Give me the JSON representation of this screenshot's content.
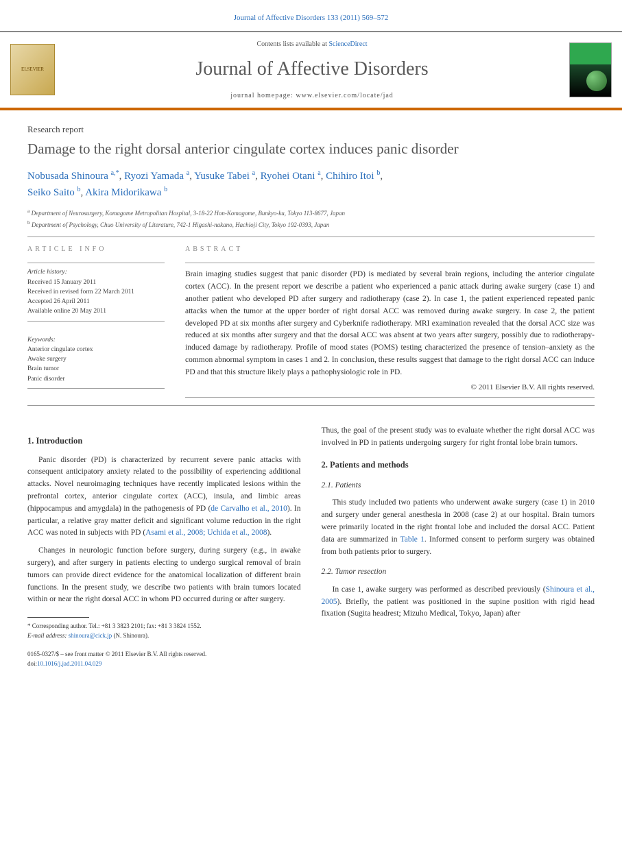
{
  "header": {
    "citation": "Journal of Affective Disorders 133 (2011) 569–572"
  },
  "masthead": {
    "elsevier": "ELSEVIER",
    "contents_prefix": "Contents lists available at ",
    "contents_link": "ScienceDirect",
    "journal": "Journal of Affective Disorders",
    "homepage_label": "journal homepage: ",
    "homepage_url": "www.elsevier.com/locate/jad"
  },
  "article": {
    "type": "Research report",
    "title": "Damage to the right dorsal anterior cingulate cortex induces panic disorder",
    "authors": [
      {
        "name": "Nobusada Shinoura",
        "aff": "a,",
        "corr": "*"
      },
      {
        "name": "Ryozi Yamada",
        "aff": "a"
      },
      {
        "name": "Yusuke Tabei",
        "aff": "a"
      },
      {
        "name": "Ryohei Otani",
        "aff": "a"
      },
      {
        "name": "Chihiro Itoi",
        "aff": "b"
      },
      {
        "name": "Seiko Saito",
        "aff": "b"
      },
      {
        "name": "Akira Midorikawa",
        "aff": "b"
      }
    ],
    "affiliations": {
      "a": "Department of Neurosurgery, Komagome Metropolitan Hospital, 3-18-22 Hon-Komagome, Bunkyo-ku, Tokyo 113-8677, Japan",
      "b": "Department of Psychology, Chuo University of Literature, 742-1 Higashi-nakano, Hachioji City, Tokyo 192-0393, Japan"
    }
  },
  "info": {
    "section_label": "ARTICLE INFO",
    "history_label": "Article history:",
    "received": "Received 15 January 2011",
    "revised": "Received in revised form 22 March 2011",
    "accepted": "Accepted 26 April 2011",
    "online": "Available online 20 May 2011",
    "keywords_label": "Keywords:",
    "keywords": [
      "Anterior cingulate cortex",
      "Awake surgery",
      "Brain tumor",
      "Panic disorder"
    ]
  },
  "abstract": {
    "section_label": "ABSTRACT",
    "text": "Brain imaging studies suggest that panic disorder (PD) is mediated by several brain regions, including the anterior cingulate cortex (ACC). In the present report we describe a patient who experienced a panic attack during awake surgery (case 1) and another patient who developed PD after surgery and radiotherapy (case 2). In case 1, the patient experienced repeated panic attacks when the tumor at the upper border of right dorsal ACC was removed during awake surgery. In case 2, the patient developed PD at six months after surgery and Cyberknife radiotherapy. MRI examination revealed that the dorsal ACC size was reduced at six months after surgery and that the dorsal ACC was absent at two years after surgery, possibly due to radiotherapy-induced damage by radiotherapy. Profile of mood states (POMS) testing characterized the presence of tension–anxiety as the common abnormal symptom in cases 1 and 2. In conclusion, these results suggest that damage to the right dorsal ACC can induce PD and that this structure likely plays a pathophysiologic role in PD.",
    "copyright": "© 2011 Elsevier B.V. All rights reserved."
  },
  "sections": {
    "intro_heading": "1. Introduction",
    "intro_p1": "Panic disorder (PD) is characterized by recurrent severe panic attacks with consequent anticipatory anxiety related to the possibility of experiencing additional attacks. Novel neuroimaging techniques have recently implicated lesions within the prefrontal cortex, anterior cingulate cortex (ACC), insula, and limbic areas (hippocampus and amygdala) in the pathogenesis of PD (",
    "intro_ref1": "de Carvalho et al., 2010",
    "intro_p1b": "). In particular, a relative gray matter deficit and significant volume reduction in the right ACC was noted in subjects with PD (",
    "intro_ref2": "Asami et al., 2008; Uchida et al., 2008",
    "intro_p1c": ").",
    "intro_p2": "Changes in neurologic function before surgery, during surgery (e.g., in awake surgery), and after surgery in patients electing to undergo surgical removal of brain tumors can provide direct evidence for the anatomical localization of different brain functions. In the present study, we describe two patients with brain tumors located within or near the right dorsal ACC in whom PD occurred during or after surgery.",
    "intro_p3": "Thus, the goal of the present study was to evaluate whether the right dorsal ACC was involved in PD in patients undergoing surgery for right frontal lobe brain tumors.",
    "methods_heading": "2. Patients and methods",
    "patients_sub": "2.1. Patients",
    "patients_p": "This study included two patients who underwent awake surgery (case 1) in 2010 and surgery under general anesthesia in 2008 (case 2) at our hospital. Brain tumors were primarily located in the right frontal lobe and included the dorsal ACC. Patient data are summarized in ",
    "patients_ref": "Table 1",
    "patients_p_b": ". Informed consent to perform surgery was obtained from both patients prior to surgery.",
    "resection_sub": "2.2. Tumor resection",
    "resection_p": "In case 1, awake surgery was performed as described previously (",
    "resection_ref": "Shinoura et al., 2005",
    "resection_p_b": "). Briefly, the patient was positioned in the supine position with rigid head fixation (Sugita headrest; Mizuho Medical, Tokyo, Japan) after"
  },
  "footnote": {
    "corr_label": "* Corresponding author. Tel.: +81 3 3823 2101; fax: +81 3 3824 1552.",
    "email_label": "E-mail address: ",
    "email": "shinoura@cick.jp",
    "email_suffix": " (N. Shinoura)."
  },
  "footer": {
    "front_matter": "0165-0327/$ – see front matter © 2011 Elsevier B.V. All rights reserved.",
    "doi_label": "doi:",
    "doi": "10.1016/j.jad.2011.04.029"
  },
  "colors": {
    "link": "#2a6ebb",
    "rule": "#cc6600"
  }
}
